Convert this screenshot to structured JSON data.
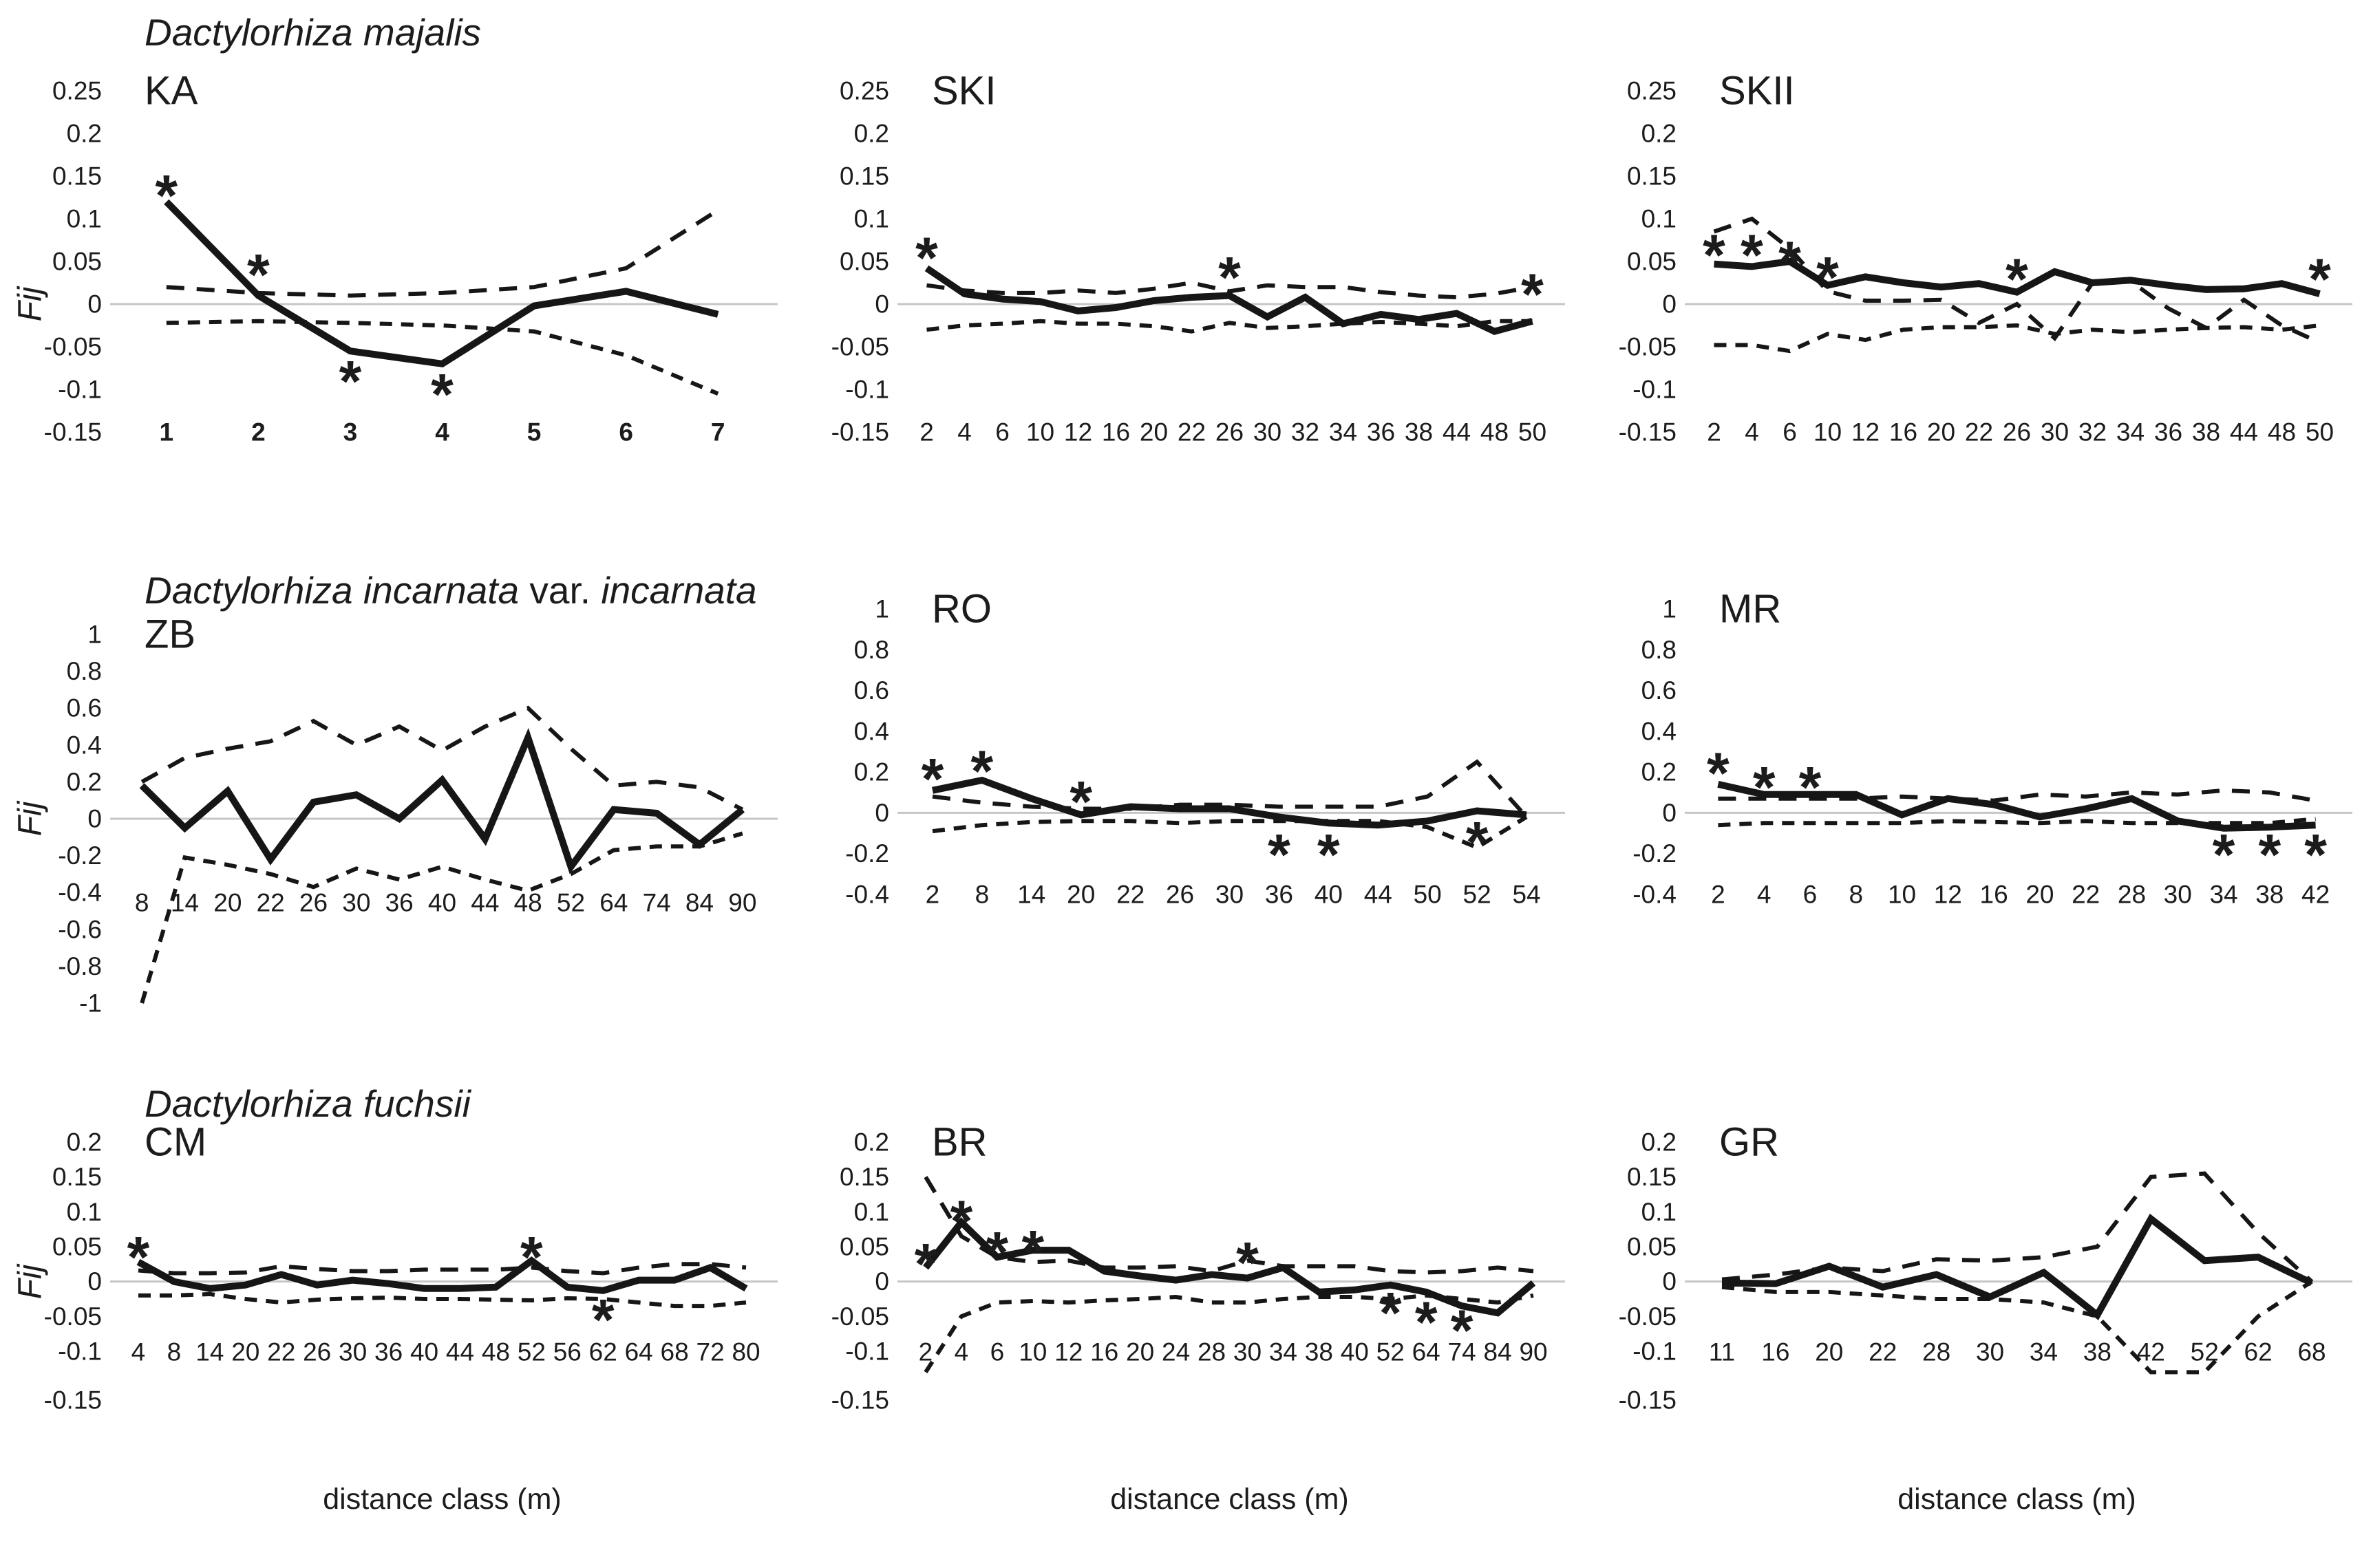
{
  "figure": {
    "y_axis_label": "Fij",
    "x_axis_label": "distance class (m)",
    "significance_marker": "*"
  },
  "colors": {
    "line": "#161616",
    "zero_line": "#c6c6c6",
    "background": "#ffffff"
  },
  "chart_data": [
    {
      "type": "line",
      "id": "KA",
      "label": "KA",
      "group_title_parts": [
        {
          "text": "Dactylorhiza majalis",
          "italic": true
        }
      ],
      "y_tick_labels": [
        "0.25",
        "0.2",
        "0.15",
        "0.1",
        "0.05",
        "0",
        "-0.05",
        "-0.1",
        "-0.15"
      ],
      "x_tick_labels": [
        "1",
        "2",
        "3",
        "4",
        "5",
        "6",
        "7"
      ],
      "x_ticks_bold": true,
      "series": [
        {
          "name": "mean kinship Fij",
          "style": "solid",
          "values": [
            0.12,
            0.01,
            -0.055,
            -0.07,
            -0.002,
            0.015,
            -0.012
          ]
        },
        {
          "name": "upper 95% CI",
          "style": "dashed",
          "values": [
            0.02,
            0.013,
            0.01,
            0.013,
            0.02,
            0.042,
            0.11
          ]
        },
        {
          "name": "lower 95% CI",
          "style": "dashed",
          "values": [
            -0.022,
            -0.02,
            -0.022,
            -0.025,
            -0.032,
            -0.06,
            -0.105
          ]
        }
      ],
      "significant_points": [
        {
          "x": "1",
          "y": 0.138
        },
        {
          "x": "2",
          "y": 0.045
        },
        {
          "x": "3",
          "y": -0.08
        },
        {
          "x": "4",
          "y": -0.095
        }
      ],
      "show_y_axis_label": true,
      "show_x_axis_label": false
    },
    {
      "type": "line",
      "id": "SKI",
      "label": "SKI",
      "y_tick_labels": [
        "0.25",
        "0.2",
        "0.15",
        "0.1",
        "0.05",
        "0",
        "-0.05",
        "-0.1",
        "-0.15"
      ],
      "x_tick_labels": [
        "2",
        "4",
        "6",
        "10",
        "12",
        "16",
        "20",
        "22",
        "26",
        "30",
        "32",
        "34",
        "36",
        "38",
        "44",
        "48",
        "50"
      ],
      "x_ticks_bold": false,
      "series": [
        {
          "name": "mean kinship Fij",
          "style": "solid",
          "values": [
            0.042,
            0.012,
            0.006,
            0.003,
            -0.008,
            -0.004,
            0.004,
            0.008,
            0.01,
            -0.015,
            0.008,
            -0.023,
            -0.012,
            -0.018,
            -0.011,
            -0.032,
            -0.02
          ]
        },
        {
          "name": "upper 95% CI",
          "style": "dashed",
          "values": [
            0.022,
            0.016,
            0.013,
            0.013,
            0.016,
            0.013,
            0.018,
            0.025,
            0.015,
            0.022,
            0.02,
            0.02,
            0.014,
            0.01,
            0.008,
            0.012,
            0.02
          ]
        },
        {
          "name": "lower 95% CI",
          "style": "dashed",
          "values": [
            -0.03,
            -0.025,
            -0.023,
            -0.02,
            -0.023,
            -0.023,
            -0.026,
            -0.032,
            -0.022,
            -0.028,
            -0.026,
            -0.023,
            -0.021,
            -0.023,
            -0.026,
            -0.02,
            -0.02
          ]
        }
      ],
      "significant_points": [
        {
          "x": "2",
          "y": 0.065
        },
        {
          "x": "26",
          "y": 0.042
        },
        {
          "x": "50",
          "y": 0.022
        }
      ],
      "show_y_axis_label": false,
      "show_x_axis_label": false
    },
    {
      "type": "line",
      "id": "SKII",
      "label": "SKII",
      "y_tick_labels": [
        "0.25",
        "0.2",
        "0.15",
        "0.1",
        "0.05",
        "0",
        "-0.05",
        "-0.1",
        "-0.15"
      ],
      "x_tick_labels": [
        "2",
        "4",
        "6",
        "10",
        "12",
        "16",
        "20",
        "22",
        "26",
        "30",
        "32",
        "34",
        "36",
        "38",
        "44",
        "48",
        "50"
      ],
      "x_ticks_bold": false,
      "series": [
        {
          "name": "mean kinship Fij",
          "style": "solid",
          "values": [
            0.047,
            0.044,
            0.05,
            0.022,
            0.032,
            0.025,
            0.02,
            0.024,
            0.014,
            0.038,
            0.025,
            0.028,
            0.022,
            0.017,
            0.018,
            0.024,
            0.012
          ]
        },
        {
          "name": "upper 95% CI",
          "style": "dashed",
          "values": [
            0.085,
            0.1,
            0.065,
            0.015,
            0.004,
            0.004,
            0.005,
            -0.022,
            0.0,
            -0.04,
            0.025,
            0.027,
            -0.005,
            -0.028,
            0.005,
            -0.025,
            -0.045
          ]
        },
        {
          "name": "lower 95% CI",
          "style": "dashed",
          "values": [
            -0.048,
            -0.048,
            -0.055,
            -0.035,
            -0.042,
            -0.03,
            -0.027,
            -0.027,
            -0.025,
            -0.035,
            -0.03,
            -0.033,
            -0.03,
            -0.028,
            -0.027,
            -0.03,
            -0.025
          ]
        }
      ],
      "significant_points": [
        {
          "x": "2",
          "y": 0.068
        },
        {
          "x": "4",
          "y": 0.068
        },
        {
          "x": "6",
          "y": 0.06
        },
        {
          "x": "10",
          "y": 0.042
        },
        {
          "x": "26",
          "y": 0.04
        },
        {
          "x": "50",
          "y": 0.04
        }
      ],
      "show_y_axis_label": false,
      "show_x_axis_label": false
    },
    {
      "type": "line",
      "id": "ZB",
      "label": "ZB",
      "group_title_parts": [
        {
          "text": "Dactylorhiza incarnata",
          "italic": true
        },
        {
          "text": " var. ",
          "italic": false
        },
        {
          "text": "incarnata",
          "italic": true
        }
      ],
      "y_tick_labels": [
        "1",
        "0.8",
        "0.6",
        "0.4",
        "0.2",
        "0",
        "-0.2",
        "-0.4",
        "-0.6",
        "-0.8",
        "-1"
      ],
      "x_tick_labels": [
        "8",
        "14",
        "20",
        "22",
        "26",
        "30",
        "36",
        "40",
        "44",
        "48",
        "52",
        "64",
        "74",
        "84",
        "90"
      ],
      "x_ticks_bold": false,
      "series": [
        {
          "name": "mean kinship Fij",
          "style": "solid",
          "values": [
            0.18,
            -0.05,
            0.15,
            -0.22,
            0.09,
            0.13,
            0.0,
            0.21,
            -0.11,
            0.44,
            -0.26,
            0.05,
            0.03,
            -0.14,
            0.05
          ]
        },
        {
          "name": "upper 95% CI",
          "style": "dashed",
          "values": [
            0.2,
            0.33,
            0.38,
            0.42,
            0.53,
            0.4,
            0.5,
            0.37,
            0.5,
            0.6,
            0.38,
            0.18,
            0.2,
            0.17,
            0.05
          ]
        },
        {
          "name": "lower 95% CI",
          "style": "dashed",
          "values": [
            -1.0,
            -0.21,
            -0.25,
            -0.3,
            -0.37,
            -0.27,
            -0.33,
            -0.26,
            -0.33,
            -0.39,
            -0.3,
            -0.17,
            -0.15,
            -0.15,
            -0.08
          ]
        }
      ],
      "significant_points": [],
      "show_y_axis_label": true,
      "show_x_axis_label": false
    },
    {
      "type": "line",
      "id": "RO",
      "label": "RO",
      "y_tick_labels": [
        "1",
        "0.8",
        "0.6",
        "0.4",
        "0.2",
        "0",
        "-0.2",
        "-0.4"
      ],
      "x_tick_labels": [
        "2",
        "8",
        "14",
        "20",
        "22",
        "26",
        "30",
        "36",
        "40",
        "44",
        "50",
        "52",
        "54"
      ],
      "x_ticks_bold": false,
      "series": [
        {
          "name": "mean kinship Fij",
          "style": "solid",
          "values": [
            0.11,
            0.16,
            0.07,
            -0.01,
            0.03,
            0.02,
            0.02,
            -0.02,
            -0.05,
            -0.06,
            -0.04,
            0.01,
            -0.01
          ]
        },
        {
          "name": "upper 95% CI",
          "style": "dashed",
          "values": [
            0.08,
            0.05,
            0.03,
            0.02,
            0.02,
            0.04,
            0.04,
            0.03,
            0.03,
            0.03,
            0.08,
            0.25,
            -0.02
          ]
        },
        {
          "name": "lower 95% CI",
          "style": "dashed",
          "values": [
            -0.09,
            -0.06,
            -0.045,
            -0.04,
            -0.04,
            -0.05,
            -0.04,
            -0.04,
            -0.04,
            -0.04,
            -0.07,
            -0.17,
            -0.02
          ]
        }
      ],
      "significant_points": [
        {
          "x": "2",
          "y": 0.21
        },
        {
          "x": "8",
          "y": 0.25
        },
        {
          "x": "20",
          "y": 0.1
        },
        {
          "x": "36",
          "y": -0.16
        },
        {
          "x": "40",
          "y": -0.16
        },
        {
          "x": "52",
          "y": -0.1
        }
      ],
      "show_y_axis_label": false,
      "show_x_axis_label": false
    },
    {
      "type": "line",
      "id": "MR",
      "label": "MR",
      "y_tick_labels": [
        "1",
        "0.8",
        "0.6",
        "0.4",
        "0.2",
        "0",
        "-0.2",
        "-0.4"
      ],
      "x_tick_labels": [
        "2",
        "4",
        "6",
        "8",
        "10",
        "12",
        "16",
        "20",
        "22",
        "28",
        "30",
        "34",
        "38",
        "42"
      ],
      "x_ticks_bold": false,
      "series": [
        {
          "name": "mean kinship Fij",
          "style": "solid",
          "values": [
            0.14,
            0.09,
            0.09,
            0.09,
            -0.01,
            0.07,
            0.04,
            -0.02,
            0.02,
            0.07,
            -0.04,
            -0.075,
            -0.07,
            -0.06
          ]
        },
        {
          "name": "upper 95% CI",
          "style": "dashed",
          "values": [
            0.07,
            0.07,
            0.07,
            0.07,
            0.08,
            0.07,
            0.06,
            0.09,
            0.08,
            0.1,
            0.09,
            0.11,
            0.1,
            0.06
          ]
        },
        {
          "name": "lower 95% CI",
          "style": "dashed",
          "values": [
            -0.06,
            -0.05,
            -0.05,
            -0.05,
            -0.05,
            -0.04,
            -0.045,
            -0.05,
            -0.04,
            -0.05,
            -0.05,
            -0.05,
            -0.05,
            -0.03
          ]
        }
      ],
      "significant_points": [
        {
          "x": "2",
          "y": 0.24
        },
        {
          "x": "4",
          "y": 0.17
        },
        {
          "x": "6",
          "y": 0.17
        },
        {
          "x": "34",
          "y": -0.16
        },
        {
          "x": "38",
          "y": -0.16
        },
        {
          "x": "42",
          "y": -0.16
        }
      ],
      "show_y_axis_label": false,
      "show_x_axis_label": false
    },
    {
      "type": "line",
      "id": "CM",
      "label": "CM",
      "group_title_parts": [
        {
          "text": "Dactylorhiza fuchsii",
          "italic": true
        }
      ],
      "y_tick_labels": [
        "0.2",
        "0.15",
        "0.1",
        "0.05",
        "0",
        "-0.05",
        "-0.1",
        "-0.15"
      ],
      "x_tick_labels": [
        "4",
        "8",
        "14",
        "20",
        "22",
        "26",
        "30",
        "36",
        "40",
        "44",
        "48",
        "52",
        "56",
        "62",
        "64",
        "68",
        "72",
        "80"
      ],
      "x_ticks_bold": false,
      "series": [
        {
          "name": "mean kinship Fij",
          "style": "solid",
          "values": [
            0.028,
            0.0,
            -0.01,
            -0.005,
            0.01,
            -0.005,
            0.002,
            -0.003,
            -0.01,
            -0.01,
            -0.008,
            0.03,
            -0.008,
            -0.013,
            0.002,
            0.002,
            0.02,
            -0.01
          ]
        },
        {
          "name": "upper 95% CI",
          "style": "dashed",
          "values": [
            0.016,
            0.012,
            0.012,
            0.013,
            0.022,
            0.018,
            0.015,
            0.015,
            0.017,
            0.017,
            0.017,
            0.02,
            0.015,
            0.012,
            0.02,
            0.025,
            0.025,
            0.02
          ]
        },
        {
          "name": "lower 95% CI",
          "style": "dashed",
          "values": [
            -0.02,
            -0.02,
            -0.018,
            -0.025,
            -0.03,
            -0.026,
            -0.024,
            -0.023,
            -0.025,
            -0.025,
            -0.026,
            -0.027,
            -0.024,
            -0.025,
            -0.03,
            -0.035,
            -0.035,
            -0.03
          ]
        }
      ],
      "significant_points": [
        {
          "x": "4",
          "y": 0.048
        },
        {
          "x": "52",
          "y": 0.048
        },
        {
          "x": "62",
          "y": -0.042
        }
      ],
      "show_y_axis_label": true,
      "show_x_axis_label": true
    },
    {
      "type": "line",
      "id": "BR",
      "label": "BR",
      "y_tick_labels": [
        "0.2",
        "0.15",
        "0.1",
        "0.05",
        "0",
        "-0.05",
        "-0.1",
        "-0.15"
      ],
      "x_tick_labels": [
        "2",
        "4",
        "6",
        "10",
        "12",
        "16",
        "20",
        "24",
        "28",
        "30",
        "34",
        "38",
        "40",
        "52",
        "64",
        "74",
        "84",
        "90"
      ],
      "x_ticks_bold": false,
      "series": [
        {
          "name": "mean kinship Fij",
          "style": "solid",
          "values": [
            0.02,
            0.085,
            0.035,
            0.045,
            0.045,
            0.015,
            0.008,
            0.002,
            0.01,
            0.005,
            0.02,
            -0.015,
            -0.012,
            -0.005,
            -0.015,
            -0.035,
            -0.045,
            -0.002
          ]
        },
        {
          "name": "upper 95% CI",
          "style": "dashed",
          "values": [
            0.15,
            0.065,
            0.035,
            0.028,
            0.03,
            0.02,
            0.02,
            0.022,
            0.015,
            0.03,
            0.022,
            0.022,
            0.022,
            0.015,
            0.013,
            0.015,
            0.02,
            0.015
          ]
        },
        {
          "name": "lower 95% CI",
          "style": "dashed",
          "values": [
            -0.13,
            -0.05,
            -0.03,
            -0.028,
            -0.03,
            -0.027,
            -0.025,
            -0.022,
            -0.03,
            -0.03,
            -0.025,
            -0.022,
            -0.022,
            -0.025,
            -0.02,
            -0.025,
            -0.03,
            -0.02
          ]
        }
      ],
      "significant_points": [
        {
          "x": "2",
          "y": 0.038
        },
        {
          "x": "4",
          "y": 0.1
        },
        {
          "x": "6",
          "y": 0.055
        },
        {
          "x": "10",
          "y": 0.057
        },
        {
          "x": "30",
          "y": 0.04
        },
        {
          "x": "52",
          "y": -0.032
        },
        {
          "x": "64",
          "y": -0.045
        },
        {
          "x": "74",
          "y": -0.057
        }
      ],
      "show_y_axis_label": false,
      "show_x_axis_label": true
    },
    {
      "type": "line",
      "id": "GR",
      "label": "GR",
      "y_tick_labels": [
        "0.2",
        "0.15",
        "0.1",
        "0.05",
        "0",
        "-0.05",
        "-0.1",
        "-0.15"
      ],
      "x_tick_labels": [
        "11",
        "16",
        "20",
        "22",
        "28",
        "30",
        "34",
        "38",
        "42",
        "52",
        "62",
        "68"
      ],
      "x_ticks_bold": false,
      "series": [
        {
          "name": "mean kinship Fij",
          "style": "solid",
          "values": [
            -0.002,
            -0.003,
            0.022,
            -0.008,
            0.01,
            -0.022,
            0.013,
            -0.048,
            0.09,
            0.03,
            0.035,
            -0.002
          ]
        },
        {
          "name": "upper 95% CI",
          "style": "dashed",
          "values": [
            0.003,
            0.01,
            0.02,
            0.015,
            0.032,
            0.03,
            0.035,
            0.05,
            0.15,
            0.155,
            0.07,
            0.0
          ]
        },
        {
          "name": "lower 95% CI",
          "style": "dashed",
          "values": [
            -0.008,
            -0.015,
            -0.015,
            -0.02,
            -0.025,
            -0.025,
            -0.03,
            -0.05,
            -0.13,
            -0.13,
            -0.05,
            0.0
          ]
        }
      ],
      "significant_points": [],
      "show_y_axis_label": false,
      "show_x_axis_label": true
    }
  ]
}
